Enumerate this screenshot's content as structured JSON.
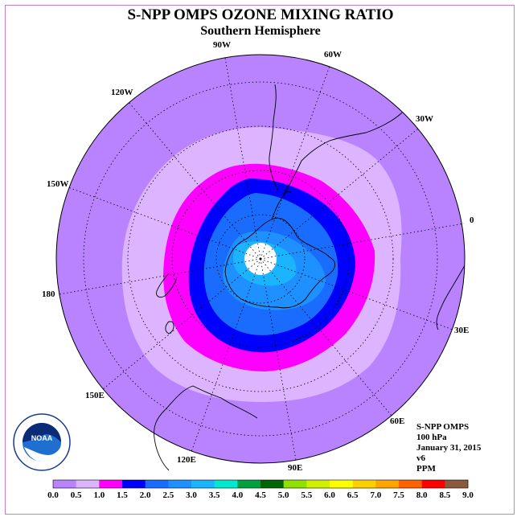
{
  "title": "S-NPP OMPS OZONE MIXING RATIO",
  "subtitle": "Southern Hemisphere",
  "longitude_labels": {
    "lon_90w": "90W",
    "lon_60w": "60W",
    "lon_30w": "30W",
    "lon_0": "0",
    "lon_30e": "30E",
    "lon_60e": "60E",
    "lon_90e": "90E",
    "lon_120e": "120E",
    "lon_150e": "150E",
    "lon_180": "180",
    "lon_150w": "150W",
    "lon_120w": "120W"
  },
  "info": {
    "instrument": "S-NPP OMPS",
    "level": "100 hPa",
    "date": "January 31, 2015",
    "version": "v6",
    "units": "PPM"
  },
  "logo_text": "NOAA",
  "colorbar": {
    "colors": [
      "#b983ff",
      "#dcb4ff",
      "#ff00ff",
      "#0000ff",
      "#1a6cff",
      "#1f90ff",
      "#1bb4ff",
      "#00e8d0",
      "#00a040",
      "#006400",
      "#90e000",
      "#d0f000",
      "#ffff00",
      "#ffd000",
      "#ffa500",
      "#ff6000",
      "#ff0000",
      "#8b5a3c"
    ],
    "labels": [
      "0.0",
      "0.5",
      "1.0",
      "1.5",
      "2.0",
      "2.5",
      "3.0",
      "3.5",
      "4.0",
      "4.5",
      "5.0",
      "5.5",
      "6.0",
      "6.5",
      "7.0",
      "7.5",
      "8.0",
      "8.5",
      "9.0"
    ]
  }
}
